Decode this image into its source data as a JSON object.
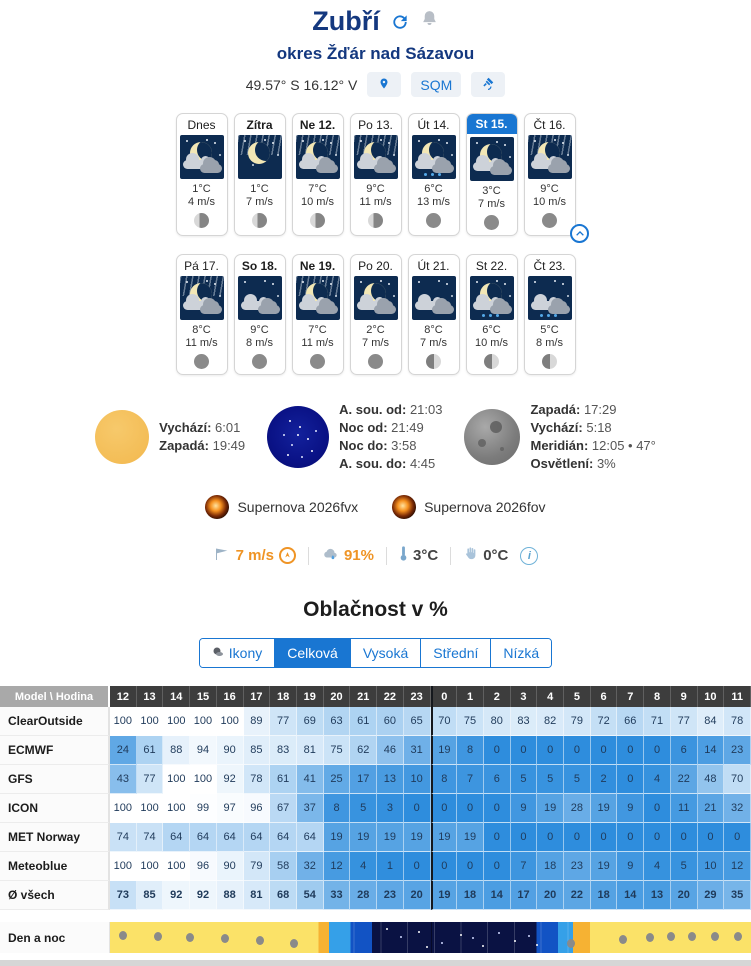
{
  "header": {
    "title": "Zubří",
    "subtitle": "okres Žďár nad Sázavou",
    "coords": "49.57° S 16.12° V",
    "sqm_label": "SQM"
  },
  "forecast": {
    "rows": [
      [
        {
          "label": "Dnes",
          "temp": "1°C",
          "wind": "4 m/s",
          "bold": false,
          "selected": false,
          "phase": "waning",
          "icon": {
            "moon": true,
            "cloud": true,
            "windy": false,
            "rain": false
          }
        },
        {
          "label": "Zítra",
          "temp": "1°C",
          "wind": "7 m/s",
          "bold": true,
          "selected": false,
          "phase": "waning",
          "icon": {
            "moon": true,
            "cloud": false,
            "windy": true,
            "rain": false
          }
        },
        {
          "label": "Ne 12.",
          "temp": "7°C",
          "wind": "10 m/s",
          "bold": true,
          "selected": false,
          "phase": "waning",
          "icon": {
            "moon": true,
            "cloud": true,
            "windy": true,
            "rain": false
          }
        },
        {
          "label": "Po 13.",
          "temp": "9°C",
          "wind": "11 m/s",
          "bold": false,
          "selected": false,
          "phase": "waning",
          "icon": {
            "moon": true,
            "cloud": true,
            "windy": true,
            "rain": false
          }
        },
        {
          "label": "Út 14.",
          "temp": "6°C",
          "wind": "13 m/s",
          "bold": false,
          "selected": false,
          "phase": "new",
          "icon": {
            "moon": true,
            "cloud": true,
            "windy": false,
            "rain": true
          }
        },
        {
          "label": "St 15.",
          "temp": "3°C",
          "wind": "7 m/s",
          "bold": false,
          "selected": true,
          "phase": "new",
          "icon": {
            "moon": true,
            "cloud": true,
            "windy": false,
            "rain": false
          }
        },
        {
          "label": "Čt 16.",
          "temp": "9°C",
          "wind": "10 m/s",
          "bold": false,
          "selected": false,
          "phase": "new",
          "icon": {
            "moon": true,
            "cloud": true,
            "windy": true,
            "rain": false
          }
        }
      ],
      [
        {
          "label": "Pá 17.",
          "temp": "8°C",
          "wind": "11 m/s",
          "bold": false,
          "selected": false,
          "phase": "new",
          "icon": {
            "moon": true,
            "cloud": true,
            "windy": true,
            "rain": false
          }
        },
        {
          "label": "So 18.",
          "temp": "9°C",
          "wind": "8 m/s",
          "bold": true,
          "selected": false,
          "phase": "new",
          "icon": {
            "moon": false,
            "cloud": true,
            "windy": false,
            "rain": false
          }
        },
        {
          "label": "Ne 19.",
          "temp": "7°C",
          "wind": "11 m/s",
          "bold": true,
          "selected": false,
          "phase": "new",
          "icon": {
            "moon": true,
            "cloud": true,
            "windy": true,
            "rain": false
          }
        },
        {
          "label": "Po 20.",
          "temp": "2°C",
          "wind": "7 m/s",
          "bold": false,
          "selected": false,
          "phase": "new",
          "icon": {
            "moon": true,
            "cloud": true,
            "windy": false,
            "rain": false
          }
        },
        {
          "label": "Út 21.",
          "temp": "8°C",
          "wind": "7 m/s",
          "bold": false,
          "selected": false,
          "phase": "half",
          "icon": {
            "moon": false,
            "cloud": true,
            "windy": false,
            "rain": false
          }
        },
        {
          "label": "St 22.",
          "temp": "6°C",
          "wind": "10 m/s",
          "bold": false,
          "selected": false,
          "phase": "half",
          "icon": {
            "moon": true,
            "cloud": true,
            "windy": false,
            "rain": true
          }
        },
        {
          "label": "Čt 23.",
          "temp": "5°C",
          "wind": "8 m/s",
          "bold": false,
          "selected": false,
          "phase": "half",
          "icon": {
            "moon": false,
            "cloud": true,
            "windy": false,
            "rain": true
          }
        }
      ]
    ]
  },
  "astro": {
    "sun": {
      "items": [
        {
          "label": "Vychází:",
          "value": "6:01"
        },
        {
          "label": "Zapadá:",
          "value": "19:49"
        }
      ]
    },
    "night": {
      "items": [
        {
          "label": "A. sou. od:",
          "value": "21:03"
        },
        {
          "label": "Noc od:",
          "value": "21:49"
        },
        {
          "label": "Noc do:",
          "value": "3:58"
        },
        {
          "label": "A. sou. do:",
          "value": "4:45"
        }
      ]
    },
    "moon": {
      "items": [
        {
          "label": "Zapadá:",
          "value": "17:29"
        },
        {
          "label": "Vychází:",
          "value": "5:18"
        },
        {
          "label": "Meridián:",
          "value": "12:05 • 47°"
        },
        {
          "label": "Osvětlení:",
          "value": "3%"
        }
      ]
    }
  },
  "supernovae": [
    "Supernova 2026fvx",
    "Supernova 2026fov"
  ],
  "stats": {
    "wind": "7 m/s",
    "humidity": "91%",
    "temperature": "3°C",
    "feels_like": "0°C"
  },
  "section": {
    "title": "Oblačnost v %",
    "tabs": [
      {
        "label": "Ikony",
        "active": false,
        "icon": true
      },
      {
        "label": "Celková",
        "active": true,
        "icon": false
      },
      {
        "label": "Vysoká",
        "active": false,
        "icon": false
      },
      {
        "label": "Střední",
        "active": false,
        "icon": false
      },
      {
        "label": "Nízká",
        "active": false,
        "icon": false
      }
    ]
  },
  "table": {
    "corner": "Model \\ Hodina",
    "hours": [
      12,
      13,
      14,
      15,
      16,
      17,
      18,
      19,
      20,
      21,
      22,
      23,
      0,
      1,
      2,
      3,
      4,
      5,
      6,
      7,
      8,
      9,
      10,
      11
    ],
    "rows": [
      {
        "model": "ClearOutside",
        "bold": false,
        "values": [
          100,
          100,
          100,
          100,
          100,
          89,
          77,
          69,
          63,
          61,
          60,
          65,
          70,
          75,
          80,
          83,
          82,
          79,
          72,
          66,
          71,
          77,
          84,
          78
        ]
      },
      {
        "model": "ECMWF",
        "bold": false,
        "values": [
          24,
          61,
          88,
          94,
          90,
          85,
          83,
          81,
          75,
          62,
          46,
          31,
          19,
          8,
          0,
          0,
          0,
          0,
          0,
          0,
          0,
          6,
          14,
          23
        ]
      },
      {
        "model": "GFS",
        "bold": false,
        "values": [
          43,
          77,
          100,
          100,
          92,
          78,
          61,
          41,
          25,
          17,
          13,
          10,
          8,
          7,
          6,
          5,
          5,
          5,
          2,
          0,
          4,
          22,
          48,
          70
        ]
      },
      {
        "model": "ICON",
        "bold": false,
        "values": [
          100,
          100,
          100,
          99,
          97,
          96,
          67,
          37,
          8,
          5,
          3,
          0,
          0,
          0,
          0,
          9,
          19,
          28,
          19,
          9,
          0,
          11,
          21,
          32
        ]
      },
      {
        "model": "MET Norway",
        "bold": false,
        "values": [
          74,
          74,
          64,
          64,
          64,
          64,
          64,
          64,
          19,
          19,
          19,
          19,
          19,
          19,
          0,
          0,
          0,
          0,
          0,
          0,
          0,
          0,
          0,
          0
        ]
      },
      {
        "model": "Meteoblue",
        "bold": false,
        "values": [
          100,
          100,
          100,
          96,
          90,
          79,
          58,
          32,
          12,
          4,
          1,
          0,
          0,
          0,
          0,
          7,
          18,
          23,
          19,
          9,
          4,
          5,
          10,
          12
        ]
      },
      {
        "model": "Ø všech",
        "bold": true,
        "values": [
          73,
          85,
          92,
          92,
          88,
          81,
          68,
          54,
          33,
          28,
          23,
          20,
          19,
          18,
          14,
          17,
          20,
          22,
          18,
          14,
          13,
          20,
          29,
          35
        ]
      }
    ]
  },
  "day_night": {
    "label": "Den a noc"
  },
  "colors": {
    "accent_blue": "#1976d2",
    "title_navy": "#14387f",
    "stat_orange": "#ef9425",
    "cell_blue": "#2e8ddd",
    "band_yellow": "#fbe268",
    "band_night": "#0a1243"
  }
}
